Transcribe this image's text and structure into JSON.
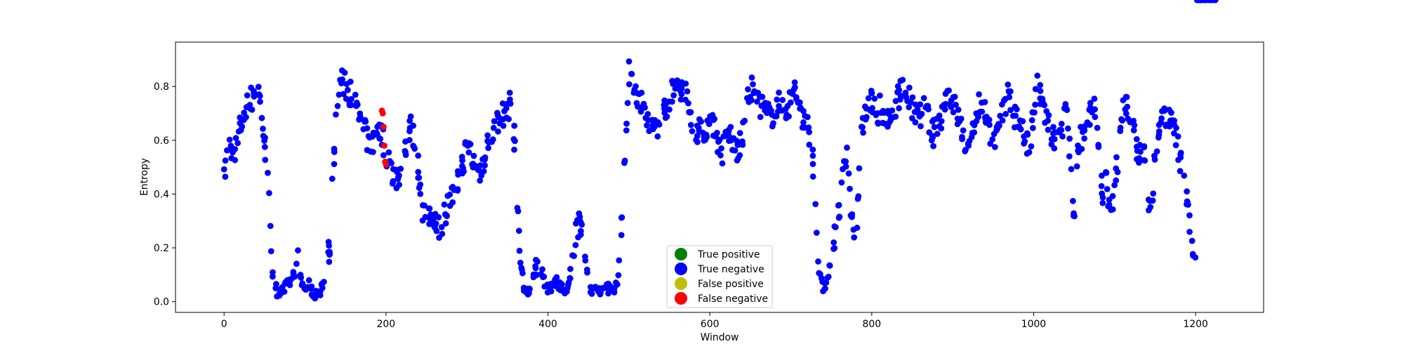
{
  "chart_data": {
    "type": "scatter",
    "title": "",
    "xlabel": "Window",
    "ylabel": "Entropy",
    "xlim": [
      -60,
      1284
    ],
    "ylim": [
      -0.04,
      0.965
    ],
    "xticks": [
      0,
      200,
      400,
      600,
      800,
      1000,
      1200
    ],
    "xtick_labels": [
      "0",
      "200",
      "400",
      "600",
      "800",
      "1000",
      "1200"
    ],
    "yticks": [
      0.0,
      0.2,
      0.4,
      0.6,
      0.8
    ],
    "ytick_labels": [
      "0.0",
      "0.2",
      "0.4",
      "0.6",
      "0.8"
    ],
    "grid": false,
    "legend_position": "bottom-center",
    "legend": [
      {
        "name": "True positive",
        "color": "#008000"
      },
      {
        "name": "True negative",
        "color": "#0000ff"
      },
      {
        "name": "False positive",
        "color": "#bfbf00"
      },
      {
        "name": "False negative",
        "color": "#ff0000"
      }
    ],
    "trend_x": [
      0,
      5,
      10,
      15,
      20,
      25,
      30,
      35,
      40,
      45,
      50,
      55,
      60,
      65,
      70,
      75,
      80,
      85,
      90,
      95,
      100,
      105,
      110,
      115,
      120,
      125,
      130,
      135,
      140,
      145,
      150,
      155,
      160,
      165,
      170,
      175,
      180,
      185,
      190,
      195,
      200,
      205,
      210,
      215,
      220,
      225,
      230,
      235,
      240,
      245,
      250,
      255,
      260,
      265,
      270,
      275,
      280,
      285,
      290,
      295,
      300,
      305,
      310,
      315,
      320,
      325,
      330,
      335,
      340,
      345,
      350,
      355,
      360,
      365,
      370,
      375,
      380,
      385,
      390,
      395,
      400,
      405,
      410,
      415,
      420,
      425,
      430,
      435,
      440,
      445,
      450,
      455,
      460,
      465,
      470,
      475,
      480,
      485,
      490,
      495,
      500,
      505,
      510,
      515,
      520,
      525,
      530,
      535,
      540,
      545,
      550,
      555,
      560,
      565,
      570,
      575,
      580,
      585,
      590,
      595,
      600,
      605,
      610,
      615,
      620,
      625,
      630,
      635,
      640,
      645,
      650,
      655,
      660,
      665,
      670,
      675,
      680,
      685,
      690,
      695,
      700,
      705,
      710,
      715,
      720,
      725,
      730,
      735,
      740,
      745,
      750,
      755,
      760,
      765,
      770,
      775,
      780,
      785,
      790,
      795,
      800,
      805,
      810,
      815,
      820,
      825,
      830,
      835,
      840,
      845,
      850,
      855,
      860,
      865,
      870,
      875,
      880,
      885,
      890,
      895,
      900,
      905,
      910,
      915,
      920,
      925,
      930,
      935,
      940,
      945,
      950,
      955,
      960,
      965,
      970,
      975,
      980,
      985,
      990,
      995,
      1000,
      1005,
      1010,
      1015,
      1020,
      1025,
      1030,
      1035,
      1040,
      1045,
      1050,
      1055,
      1060,
      1065,
      1070,
      1075,
      1080,
      1085,
      1090,
      1095,
      1100,
      1105,
      1110,
      1115,
      1120,
      1125,
      1130,
      1135,
      1140,
      1145,
      1150,
      1155,
      1160,
      1165,
      1170,
      1175,
      1180,
      1185,
      1190,
      1195,
      1200,
      1205,
      1210,
      1215,
      1220
    ],
    "trend_y": [
      0.45,
      0.6,
      0.55,
      0.58,
      0.65,
      0.7,
      0.74,
      0.76,
      0.82,
      0.74,
      0.6,
      0.4,
      0.12,
      0.04,
      0.03,
      0.05,
      0.07,
      0.08,
      0.2,
      0.07,
      0.05,
      0.06,
      0.03,
      0.02,
      0.05,
      0.09,
      0.2,
      0.5,
      0.75,
      0.82,
      0.8,
      0.78,
      0.76,
      0.7,
      0.66,
      0.62,
      0.58,
      0.6,
      0.65,
      0.62,
      0.55,
      0.5,
      0.48,
      0.45,
      0.5,
      0.6,
      0.65,
      0.6,
      0.5,
      0.35,
      0.3,
      0.3,
      0.32,
      0.28,
      0.3,
      0.35,
      0.38,
      0.4,
      0.45,
      0.52,
      0.58,
      0.55,
      0.5,
      0.48,
      0.52,
      0.58,
      0.62,
      0.65,
      0.68,
      0.7,
      0.72,
      0.74,
      0.55,
      0.2,
      0.05,
      0.03,
      0.06,
      0.12,
      0.16,
      0.08,
      0.05,
      0.06,
      0.08,
      0.05,
      0.04,
      0.06,
      0.15,
      0.28,
      0.3,
      0.22,
      0.05,
      0.03,
      0.04,
      0.04,
      0.05,
      0.05,
      0.05,
      0.06,
      0.2,
      0.55,
      0.85,
      0.82,
      0.78,
      0.74,
      0.7,
      0.65,
      0.64,
      0.66,
      0.68,
      0.72,
      0.76,
      0.78,
      0.8,
      0.8,
      0.78,
      0.7,
      0.66,
      0.64,
      0.62,
      0.65,
      0.68,
      0.65,
      0.6,
      0.55,
      0.6,
      0.62,
      0.58,
      0.56,
      0.6,
      0.7,
      0.8,
      0.78,
      0.75,
      0.72,
      0.7,
      0.68,
      0.72,
      0.74,
      0.7,
      0.72,
      0.75,
      0.8,
      0.72,
      0.68,
      0.65,
      0.62,
      0.4,
      0.1,
      0.05,
      0.07,
      0.15,
      0.25,
      0.35,
      0.5,
      0.58,
      0.3,
      0.15,
      0.55,
      0.68,
      0.72,
      0.74,
      0.7,
      0.72,
      0.68,
      0.66,
      0.7,
      0.74,
      0.78,
      0.8,
      0.76,
      0.72,
      0.68,
      0.7,
      0.72,
      0.68,
      0.62,
      0.65,
      0.68,
      0.75,
      0.78,
      0.74,
      0.7,
      0.65,
      0.6,
      0.55,
      0.62,
      0.72,
      0.75,
      0.7,
      0.65,
      0.6,
      0.62,
      0.68,
      0.72,
      0.78,
      0.7,
      0.68,
      0.65,
      0.6,
      0.55,
      0.7,
      0.82,
      0.74,
      0.68,
      0.64,
      0.6,
      0.58,
      0.65,
      0.7,
      0.55,
      0.3,
      0.6,
      0.62,
      0.65,
      0.7,
      0.72,
      0.55,
      0.4,
      0.45,
      0.3,
      0.45,
      0.55,
      0.7,
      0.75,
      0.68,
      0.6,
      0.55,
      0.58,
      0.45,
      0.3,
      0.55,
      0.62,
      0.7,
      0.7,
      0.66,
      0.62,
      0.55,
      0.45,
      0.4,
      0.2,
      0.12
    ],
    "scatter_seed": 7,
    "series": [
      {
        "name": "False negative",
        "color": "#ff0000",
        "x": [
          195,
          196,
          197,
          198,
          199,
          200
        ],
        "y": [
          0.71,
          0.7,
          0.65,
          0.58,
          0.52,
          0.51
        ]
      }
    ]
  }
}
